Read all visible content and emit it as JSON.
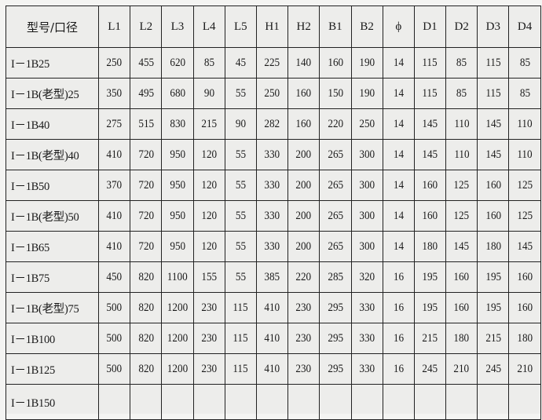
{
  "table": {
    "headers": [
      "型号/口径",
      "L1",
      "L2",
      "L3",
      "L4",
      "L5",
      "H1",
      "H2",
      "B1",
      "B2",
      "ϕ",
      "D1",
      "D2",
      "D3",
      "D4"
    ],
    "rows": [
      [
        "I－1B25",
        "250",
        "455",
        "620",
        "85",
        "45",
        "225",
        "140",
        "160",
        "190",
        "14",
        "115",
        "85",
        "115",
        "85"
      ],
      [
        "I－1B(老型)25",
        "350",
        "495",
        "680",
        "90",
        "55",
        "250",
        "160",
        "150",
        "190",
        "14",
        "115",
        "85",
        "115",
        "85"
      ],
      [
        "I－1B40",
        "275",
        "515",
        "830",
        "215",
        "90",
        "282",
        "160",
        "220",
        "250",
        "14",
        "145",
        "110",
        "145",
        "110"
      ],
      [
        "I－1B(老型)40",
        "410",
        "720",
        "950",
        "120",
        "55",
        "330",
        "200",
        "265",
        "300",
        "14",
        "145",
        "110",
        "145",
        "110"
      ],
      [
        "I－1B50",
        "370",
        "720",
        "950",
        "120",
        "55",
        "330",
        "200",
        "265",
        "300",
        "14",
        "160",
        "125",
        "160",
        "125"
      ],
      [
        "I－1B(老型)50",
        "410",
        "720",
        "950",
        "120",
        "55",
        "330",
        "200",
        "265",
        "300",
        "14",
        "160",
        "125",
        "160",
        "125"
      ],
      [
        "I－1B65",
        "410",
        "720",
        "950",
        "120",
        "55",
        "330",
        "200",
        "265",
        "300",
        "14",
        "180",
        "145",
        "180",
        "145"
      ],
      [
        "I－1B75",
        "450",
        "820",
        "1100",
        "155",
        "55",
        "385",
        "220",
        "285",
        "320",
        "16",
        "195",
        "160",
        "195",
        "160"
      ],
      [
        "I－1B(老型)75",
        "500",
        "820",
        "1200",
        "230",
        "115",
        "410",
        "230",
        "295",
        "330",
        "16",
        "195",
        "160",
        "195",
        "160"
      ],
      [
        "I－1B100",
        "500",
        "820",
        "1200",
        "230",
        "115",
        "410",
        "230",
        "295",
        "330",
        "16",
        "215",
        "180",
        "215",
        "180"
      ],
      [
        "I－1B125",
        "500",
        "820",
        "1200",
        "230",
        "115",
        "410",
        "230",
        "295",
        "330",
        "16",
        "245",
        "210",
        "245",
        "210"
      ],
      [
        "I－1B150",
        "",
        "",
        "",
        "",
        "",
        "",
        "",
        "",
        "",
        "",
        "",
        "",
        "",
        ""
      ]
    ]
  }
}
